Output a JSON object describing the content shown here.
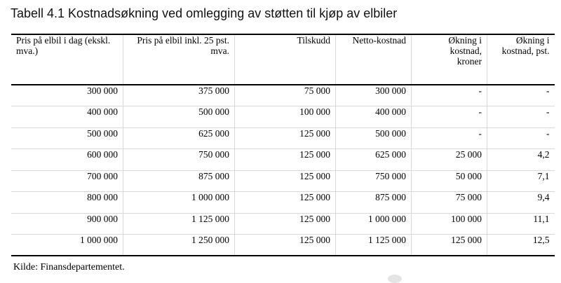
{
  "title": "Tabell 4.1 Kostnadsøkning ved omlegging av støtten til kjøp av elbiler",
  "table": {
    "headers": [
      "Pris på elbil i dag (ekskl. mva.)",
      "Pris på elbil inkl. 25 pst. mva.",
      "Tilskudd",
      "Netto-kostnad",
      "Økning i kostnad, kroner",
      "Økning i kostnad, pst."
    ],
    "rows": [
      [
        "300 000",
        "375 000",
        "75 000",
        "300 000",
        "-",
        "-"
      ],
      [
        "400 000",
        "500 000",
        "100 000",
        "400 000",
        "-",
        "-"
      ],
      [
        "500 000",
        "625 000",
        "125 000",
        "500 000",
        "-",
        "-"
      ],
      [
        "600 000",
        "750 000",
        "125 000",
        "625 000",
        "25 000",
        "4,2"
      ],
      [
        "700 000",
        "875 000",
        "125 000",
        "750 000",
        "50 000",
        "7,1"
      ],
      [
        "800 000",
        "1 000 000",
        "125 000",
        "875 000",
        "75 000",
        "9,4"
      ],
      [
        "900 000",
        "1 125 000",
        "125 000",
        "1 000 000",
        "100 000",
        "11,1"
      ],
      [
        "1 000 000",
        "1 250 000",
        "125 000",
        "1 125 000",
        "125 000",
        "12,5"
      ]
    ]
  },
  "source": "Kilde: Finansdepartementet."
}
